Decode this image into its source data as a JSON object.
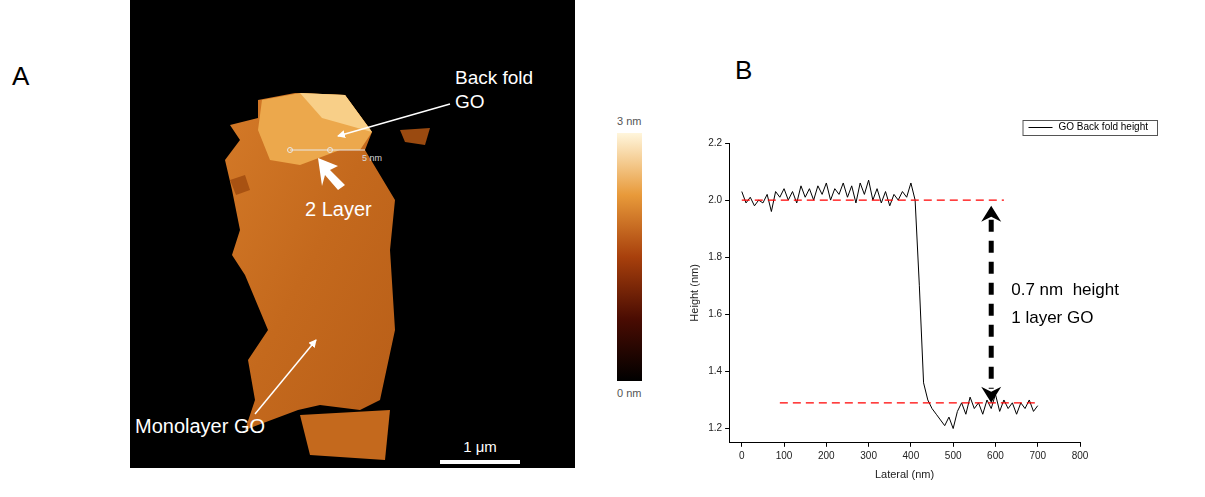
{
  "panel_a": {
    "letter": "A",
    "labels": {
      "back_fold": "Back fold GO",
      "two_layer": "2 Layer",
      "monolayer": "Monolayer GO",
      "profile": "5 nm"
    },
    "scale_bar": "1 μm",
    "color_bar": {
      "range": [
        0,
        3
      ],
      "ticks": [
        {
          "value": 0,
          "label": "0 nm"
        },
        {
          "value": 3,
          "label": "3 nm"
        }
      ]
    }
  },
  "chart_data": {
    "letter": "B",
    "type": "line",
    "x_label": "Lateral (nm)",
    "y_label": "Height (nm)",
    "x": [
      0,
      10,
      20,
      30,
      40,
      50,
      60,
      70,
      80,
      90,
      100,
      110,
      120,
      130,
      140,
      150,
      160,
      170,
      180,
      190,
      200,
      210,
      220,
      230,
      240,
      250,
      260,
      270,
      280,
      290,
      300,
      310,
      320,
      330,
      340,
      350,
      360,
      370,
      380,
      390,
      400,
      410,
      420,
      430,
      440,
      450,
      460,
      470,
      480,
      490,
      500,
      510,
      520,
      530,
      540,
      550,
      560,
      570,
      580,
      590,
      600,
      610,
      620,
      630,
      640,
      650,
      660,
      670,
      680,
      690,
      700
    ],
    "series": [
      {
        "name": "GO Back fold height",
        "color": "#000000",
        "values": [
          2.03,
          1.99,
          2.01,
          1.98,
          2.0,
          1.99,
          2.02,
          1.96,
          2.03,
          2.01,
          2.04,
          2.0,
          2.03,
          1.99,
          2.05,
          2.01,
          2.04,
          2.0,
          2.05,
          2.02,
          2.06,
          2.0,
          2.04,
          2.02,
          2.06,
          2.01,
          2.05,
          1.99,
          2.06,
          2.02,
          2.07,
          2.0,
          2.04,
          1.99,
          2.03,
          1.98,
          2.02,
          2.0,
          2.03,
          2.01,
          2.06,
          2.0,
          1.7,
          1.36,
          1.3,
          1.27,
          1.25,
          1.23,
          1.21,
          1.24,
          1.2,
          1.26,
          1.29,
          1.25,
          1.31,
          1.27,
          1.29,
          1.25,
          1.3,
          1.27,
          1.32,
          1.26,
          1.3,
          1.27,
          1.29,
          1.25,
          1.29,
          1.27,
          1.3,
          1.26,
          1.28
        ]
      }
    ],
    "xlim": [
      -30,
      800
    ],
    "xticks": [
      0,
      100,
      200,
      300,
      400,
      500,
      600,
      700,
      800
    ],
    "ylim": [
      1.15,
      2.2
    ],
    "yticks": [
      1.2,
      1.4,
      1.6,
      1.8,
      {
        "value": 2.0,
        "label": "2.0"
      },
      2.2
    ],
    "grid": false,
    "legend": "upper right",
    "annotations": [
      {
        "shape": "hline",
        "y": 2.0,
        "x": [
          0,
          620
        ],
        "color": "#ff0000",
        "line_style": "dashed"
      },
      {
        "shape": "hline",
        "y": 1.29,
        "x": [
          90,
          700
        ],
        "color": "#ff0000",
        "line_style": "dashed"
      },
      {
        "shape": "arrow",
        "x": 590,
        "y": [
          1.29,
          1.98
        ],
        "color": "#000000",
        "line_style": "dashed",
        "text": [
          "0.7 nm  height",
          "1 layer GO"
        ]
      }
    ]
  }
}
